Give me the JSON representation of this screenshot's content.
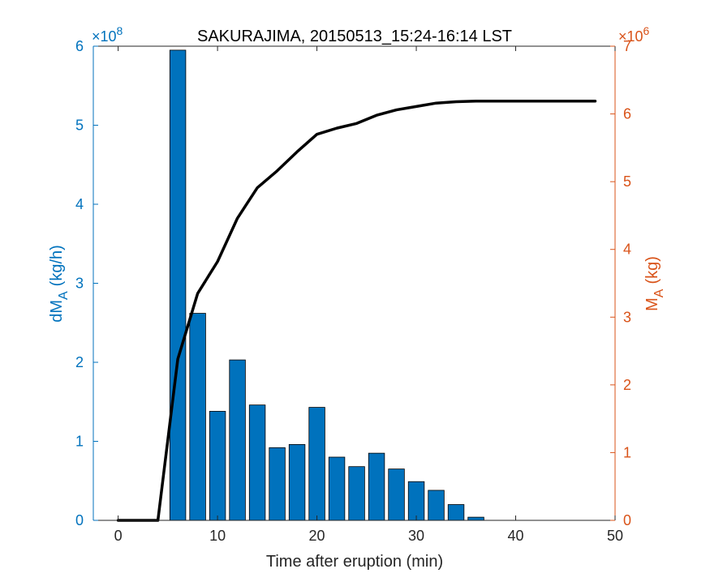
{
  "chart_data": {
    "type": "bar+line",
    "title": "SAKURAJIMA, 20150513_15:24-16:14 LST",
    "xlabel": "Time after eruption (min)",
    "xlim": [
      -2.5,
      50
    ],
    "x_ticks": [
      0,
      10,
      20,
      30,
      40,
      50
    ],
    "left_axis": {
      "label_main": "dM",
      "label_sub": "A",
      "label_unit": "(kg/h)",
      "exponent_text": "×10",
      "exponent_power": "8",
      "ylim": [
        0,
        6
      ],
      "ticks": [
        0,
        1,
        2,
        3,
        4,
        5,
        6
      ],
      "color": "#0072BD"
    },
    "right_axis": {
      "label_main": "M",
      "label_sub": "A",
      "label_unit": "(kg)",
      "exponent_text": "×10",
      "exponent_power": "6",
      "ylim": [
        0,
        7
      ],
      "ticks": [
        0,
        1,
        2,
        3,
        4,
        5,
        6,
        7
      ],
      "color": "#D95319"
    },
    "bars": {
      "color": "#0072BD",
      "x": [
        6,
        8,
        10,
        12,
        14,
        16,
        18,
        20,
        22,
        24,
        26,
        28,
        30,
        32,
        34,
        36
      ],
      "values": [
        5.95,
        2.62,
        1.38,
        2.03,
        1.46,
        0.92,
        0.96,
        1.43,
        0.8,
        0.68,
        0.85,
        0.65,
        0.49,
        0.38,
        0.2,
        0.04
      ]
    },
    "line": {
      "color": "#000000",
      "x": [
        0,
        2,
        4,
        6,
        8,
        10,
        12,
        14,
        16,
        18,
        20,
        22,
        24,
        26,
        28,
        30,
        32,
        34,
        36,
        38,
        40,
        42,
        44,
        46,
        48
      ],
      "values": [
        0,
        0,
        0,
        2.38,
        3.35,
        3.82,
        4.46,
        4.91,
        5.16,
        5.44,
        5.7,
        5.79,
        5.86,
        5.98,
        6.06,
        6.11,
        6.16,
        6.18,
        6.19,
        6.19,
        6.19,
        6.19,
        6.19,
        6.19,
        6.19
      ]
    }
  }
}
